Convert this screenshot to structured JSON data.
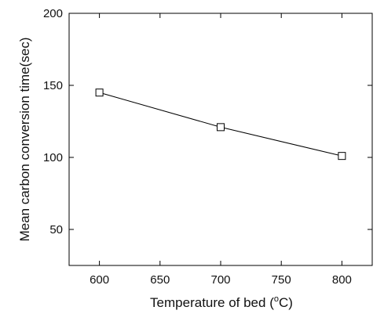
{
  "chart_data": {
    "type": "line",
    "title": "",
    "xlabel": "Temperature of bed (°C)",
    "xlabel_parts": {
      "before": "Temperature of bed (",
      "superscript": "o",
      "after": "C)"
    },
    "ylabel": "Mean carbon conversion time(sec)",
    "xlim": [
      575,
      825
    ],
    "ylim": [
      25,
      200
    ],
    "x_ticks": [
      600,
      650,
      700,
      750,
      800
    ],
    "y_ticks": [
      50,
      100,
      150,
      200
    ],
    "grid": false,
    "legend": "none",
    "series": [
      {
        "x": [
          600,
          700,
          800
        ],
        "y": [
          145,
          121,
          101
        ],
        "marker": "open-square",
        "line_color": "#000000"
      }
    ]
  }
}
